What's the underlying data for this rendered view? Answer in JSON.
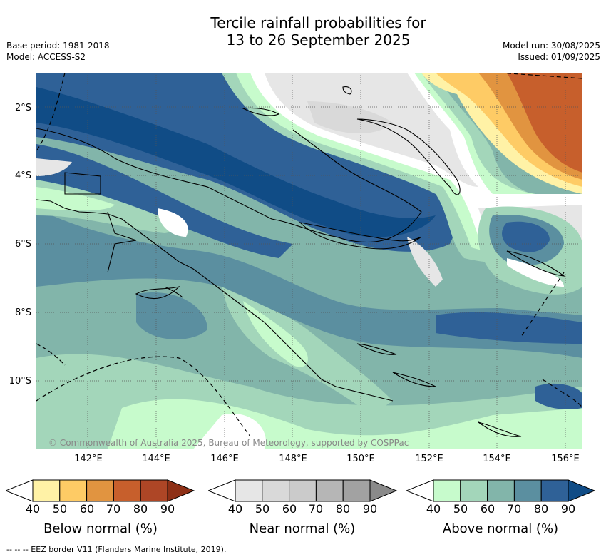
{
  "title_line1": "Tercile rainfall probabilities for",
  "title_line2": "13 to 26 September 2025",
  "base_period": "Base period: 1981-2018",
  "model": "Model: ACCESS-S2",
  "model_run": "Model run: 30/08/2025",
  "issued": "Issued: 01/09/2025",
  "lat_labels": [
    "2°S",
    "4°S",
    "6°S",
    "8°S",
    "10°S"
  ],
  "lon_labels": [
    "142°E",
    "144°E",
    "146°E",
    "148°E",
    "150°E",
    "152°E",
    "154°E",
    "156°E"
  ],
  "credit": "© Commonwealth of Australia 2025, Bureau of Meteorology, supported by COSPPac",
  "colorbars": [
    {
      "title": "Below normal (%)",
      "ticks": [
        "40",
        "50",
        "60",
        "70",
        "80",
        "90"
      ],
      "colors": [
        "#fff2a6",
        "#fecb65",
        "#e19440",
        "#c75f2c",
        "#ae4626",
        "#8e3016"
      ]
    },
    {
      "title": "Near normal (%)",
      "ticks": [
        "40",
        "50",
        "60",
        "70",
        "80",
        "90"
      ],
      "colors": [
        "#e6e6e6",
        "#d9d9d9",
        "#cbcbcb",
        "#b6b6b6",
        "#a2a2a2",
        "#8a8a8a"
      ]
    },
    {
      "title": "Above normal (%)",
      "ticks": [
        "40",
        "50",
        "60",
        "70",
        "80",
        "90"
      ],
      "colors": [
        "#c7fbcc",
        "#a3d6ba",
        "#82b5aa",
        "#5b8fa0",
        "#2f6197",
        "#104c86"
      ]
    }
  ],
  "footnote": "-- -- -- EEZ border V11 (Flanders Marine Institute, 2019)."
}
